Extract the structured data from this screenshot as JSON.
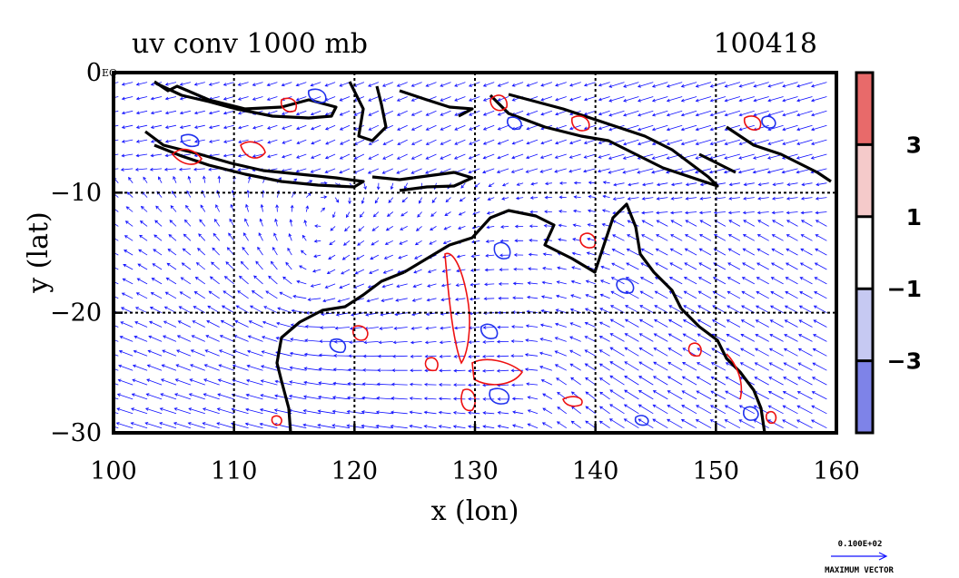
{
  "chart_data": {
    "type": "vector-field-contour",
    "title_left": "uv conv 1000 mb",
    "title_right": "100418",
    "xlabel": "x (lon)",
    "ylabel": "y (lat)",
    "xlim": [
      100,
      160
    ],
    "ylim": [
      -30,
      0
    ],
    "x_ticks": [
      100,
      110,
      120,
      130,
      140,
      150,
      160
    ],
    "x_tick_labels": [
      "100",
      "110",
      "120",
      "130",
      "140",
      "150",
      "160"
    ],
    "y_ticks": [
      0,
      -10,
      -20,
      -30
    ],
    "y_tick_labels": [
      "0",
      "−10",
      "−20",
      "−30"
    ],
    "y_top_suffix": "EQ",
    "grid": true,
    "colorbar": {
      "levels": [
        3,
        1,
        -1,
        -3
      ],
      "labels": [
        "3",
        "1",
        "−1",
        "−3"
      ],
      "bands": [
        {
          "color": "#e86a6a"
        },
        {
          "color": "#f5caca"
        },
        {
          "color": "#ffffff"
        },
        {
          "color": "#c6c9f2"
        },
        {
          "color": "#7e83e8"
        }
      ]
    },
    "vector_color": "#1010ff",
    "contour_colors": {
      "positive": "#ee1111",
      "negative": "#2233ee"
    },
    "coast_color": "#000000",
    "reference_vector": {
      "value": "0.100E+02",
      "label": "MAXIMUM VECTOR"
    }
  }
}
